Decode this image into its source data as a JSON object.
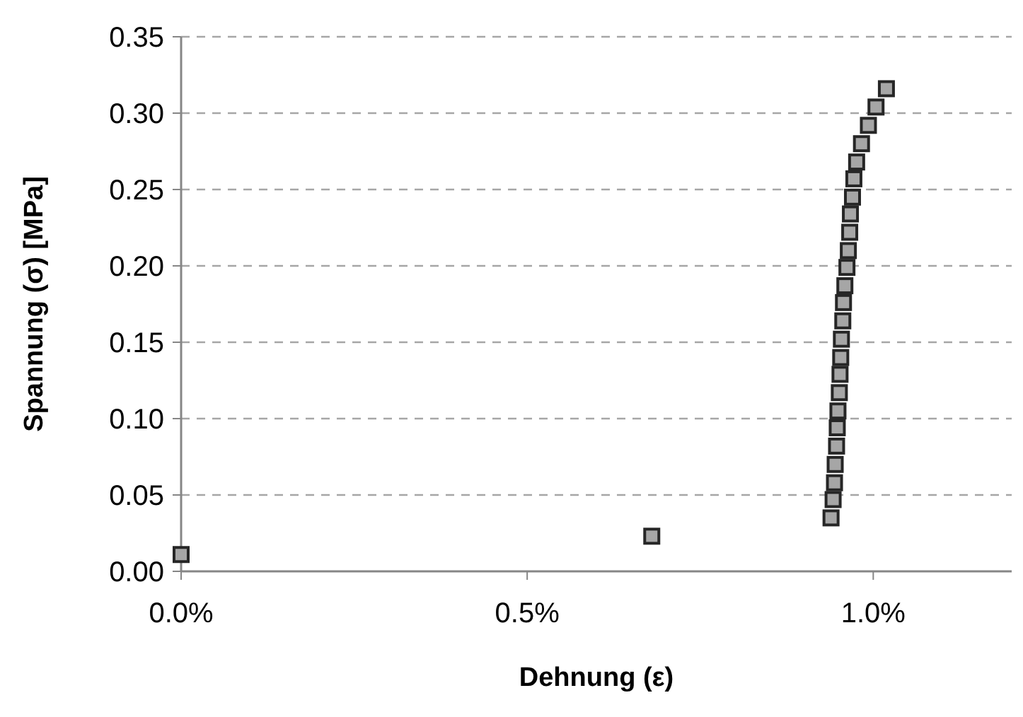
{
  "chart_data": {
    "type": "scatter",
    "xlabel": "Dehnung (ε)",
    "ylabel": "Spannung (σ) [MPa]",
    "x": [
      0,
      0.68,
      0.939,
      0.942,
      0.944,
      0.945,
      0.947,
      0.948,
      0.949,
      0.951,
      0.952,
      0.953,
      0.954,
      0.956,
      0.957,
      0.959,
      0.962,
      0.964,
      0.966,
      0.967,
      0.97,
      0.972,
      0.976,
      0.983,
      0.993,
      1.004,
      1.019
    ],
    "series": [
      {
        "color": "#a6a6a6",
        "values": [
          0.011,
          0.023,
          0.035,
          0.047,
          0.058,
          0.07,
          0.082,
          0.094,
          0.105,
          0.117,
          0.129,
          0.14,
          0.152,
          0.164,
          0.176,
          0.187,
          0.199,
          0.21,
          0.222,
          0.234,
          0.245,
          0.257,
          0.268,
          0.28,
          0.292,
          0.304,
          0.316
        ]
      }
    ],
    "xlim": [
      0,
      1.2
    ],
    "xticks": [
      {
        "value": 0,
        "label": "0.0%"
      },
      {
        "value": 0.5,
        "label": "0.5%"
      },
      {
        "value": 1,
        "label": "1.0%"
      }
    ],
    "ylim": [
      0,
      0.35
    ],
    "yticks": [
      {
        "value": 0,
        "label": "0.00"
      },
      {
        "value": 0.05,
        "label": "0.05"
      },
      {
        "value": 0.1,
        "label": "0.10"
      },
      {
        "value": 0.15,
        "label": "0.15"
      },
      {
        "value": 0.2,
        "label": "0.20"
      },
      {
        "value": 0.25,
        "label": "0.25"
      },
      {
        "value": 0.3,
        "label": "0.30"
      },
      {
        "value": 0.35,
        "label": "0.35"
      }
    ],
    "grid": "y",
    "marker": "square"
  }
}
